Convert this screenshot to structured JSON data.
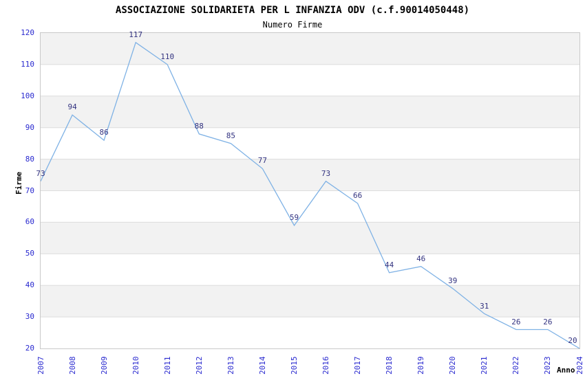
{
  "title": "ASSOCIAZIONE SOLIDARIETA PER L INFANZIA ODV (c.f.90014050448)",
  "subtitle": "Numero Firme",
  "chart_data": {
    "type": "line",
    "title": "ASSOCIAZIONE SOLIDARIETA PER L INFANZIA ODV (c.f.90014050448)",
    "subtitle": "Numero Firme",
    "xlabel": "Anno",
    "ylabel": "Firme",
    "categories": [
      "2007",
      "2008",
      "2009",
      "2010",
      "2011",
      "2012",
      "2013",
      "2014",
      "2015",
      "2016",
      "2017",
      "2018",
      "2019",
      "2020",
      "2021",
      "2022",
      "2023",
      "2024"
    ],
    "values": [
      73,
      94,
      86,
      117,
      110,
      88,
      85,
      77,
      59,
      73,
      66,
      44,
      46,
      39,
      31,
      26,
      26,
      20
    ],
    "ylim": [
      20,
      120
    ],
    "yticks": [
      20,
      30,
      40,
      50,
      60,
      70,
      80,
      90,
      100,
      110,
      120
    ],
    "grid": "horizontal alternating bands every 10 units, thin gridlines at band edges",
    "legend_position": "none",
    "data_labels_shown": true,
    "x_tick_rotation_degrees": 90
  },
  "colors": {
    "line": "#7fb2e5",
    "data_label": "#333380",
    "tick_label": "#2828cf",
    "band_gray": "#f2f2f2",
    "band_white": "#ffffff",
    "gridline": "#dcdcdc",
    "plot_border": "#c9c9c9",
    "text": "#000000"
  }
}
